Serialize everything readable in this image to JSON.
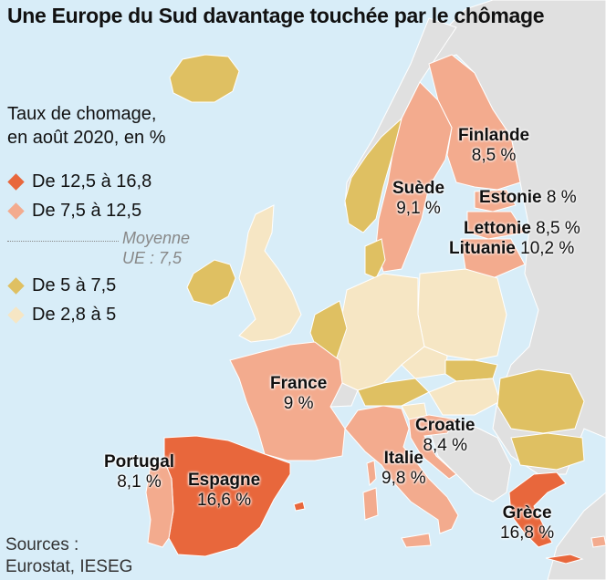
{
  "title": "Une Europe du Sud davantage touchée par le chômage",
  "legend": {
    "title_line1": "Taux de chomage,",
    "title_line2": "en août 2020, en %",
    "items": [
      {
        "label": "De 12,5 à 16,8",
        "color": "#e8673c"
      },
      {
        "label": "De 7,5 à 12,5",
        "color": "#f3ab8e"
      },
      {
        "label": "De 5 à 7,5",
        "color": "#dfc062"
      },
      {
        "label": "De 2,8 à 5",
        "color": "#f6e6c4"
      }
    ],
    "average_line1": "Moyenne",
    "average_line2": "UE : 7,5"
  },
  "sources_line1": "Sources :",
  "sources_line2": "Eurostat, IESEG",
  "countries": {
    "finlande": {
      "name": "Finlande",
      "value": "8,5 %"
    },
    "suede": {
      "name": "Suède",
      "value": "9,1 %"
    },
    "estonie": {
      "name": "Estonie",
      "value": "8 %"
    },
    "lettonie": {
      "name": "Lettonie",
      "value": "8,5 %"
    },
    "lituanie": {
      "name": "Lituanie",
      "value": "10,2 %"
    },
    "france": {
      "name": "France",
      "value": "9 %"
    },
    "croatie": {
      "name": "Croatie",
      "value": "8,4 %"
    },
    "italie": {
      "name": "Italie",
      "value": "9,8 %"
    },
    "portugal": {
      "name": "Portugal",
      "value": "8,1 %"
    },
    "espagne": {
      "name": "Espagne",
      "value": "16,6 %"
    },
    "grece": {
      "name": "Grèce",
      "value": "16,8 %"
    }
  },
  "colors": {
    "sea": "#d8edf8",
    "non_eu": "#e0e0e0",
    "high": "#e8673c",
    "mid_high": "#f3ab8e",
    "mid_low": "#dfc062",
    "low": "#f6e6c4",
    "border": "#ffffff"
  }
}
